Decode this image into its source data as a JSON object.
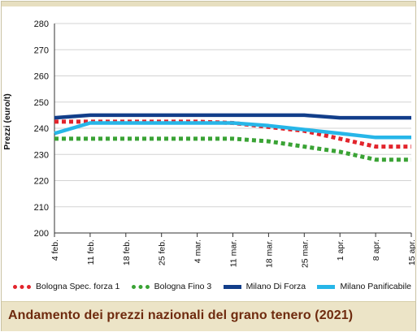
{
  "chart_data": {
    "type": "line",
    "title": "Andamento dei prezzi nazionali del grano tenero (2021)",
    "ylabel": "Prezzi (euro/t)",
    "xlabel": "",
    "ylim": [
      200,
      280
    ],
    "yticks": [
      200,
      210,
      220,
      230,
      240,
      250,
      260,
      270,
      280
    ],
    "categories": [
      "4 feb.",
      "11 feb.",
      "18 feb.",
      "25 feb.",
      "4 mar.",
      "11 mar.",
      "18 mar.",
      "25 mar.",
      "1 apr.",
      "8 apr.",
      "15 apr."
    ],
    "grid": "horizontal",
    "legend_position": "bottom",
    "series": [
      {
        "name": "Bologna Spec. forza 1",
        "color": "#e2242c",
        "style": "dotted",
        "values": [
          242.5,
          242.5,
          242.5,
          242.5,
          242.5,
          242,
          240.5,
          239,
          236,
          233,
          233
        ]
      },
      {
        "name": "Bologna Fino 3",
        "color": "#3aa335",
        "style": "dotted",
        "values": [
          236,
          236,
          236,
          236,
          236,
          236,
          235,
          233,
          231,
          228,
          228
        ]
      },
      {
        "name": "Milano Di Forza",
        "color": "#123e8a",
        "style": "solid",
        "values": [
          244,
          245,
          245,
          245,
          245,
          245,
          245,
          245,
          244,
          244,
          244
        ]
      },
      {
        "name": "Milano Panificabile",
        "color": "#27b6e8",
        "style": "solid",
        "values": [
          238,
          242,
          242,
          242,
          242,
          242,
          241,
          239.5,
          238,
          236.5,
          236.5
        ]
      }
    ]
  }
}
